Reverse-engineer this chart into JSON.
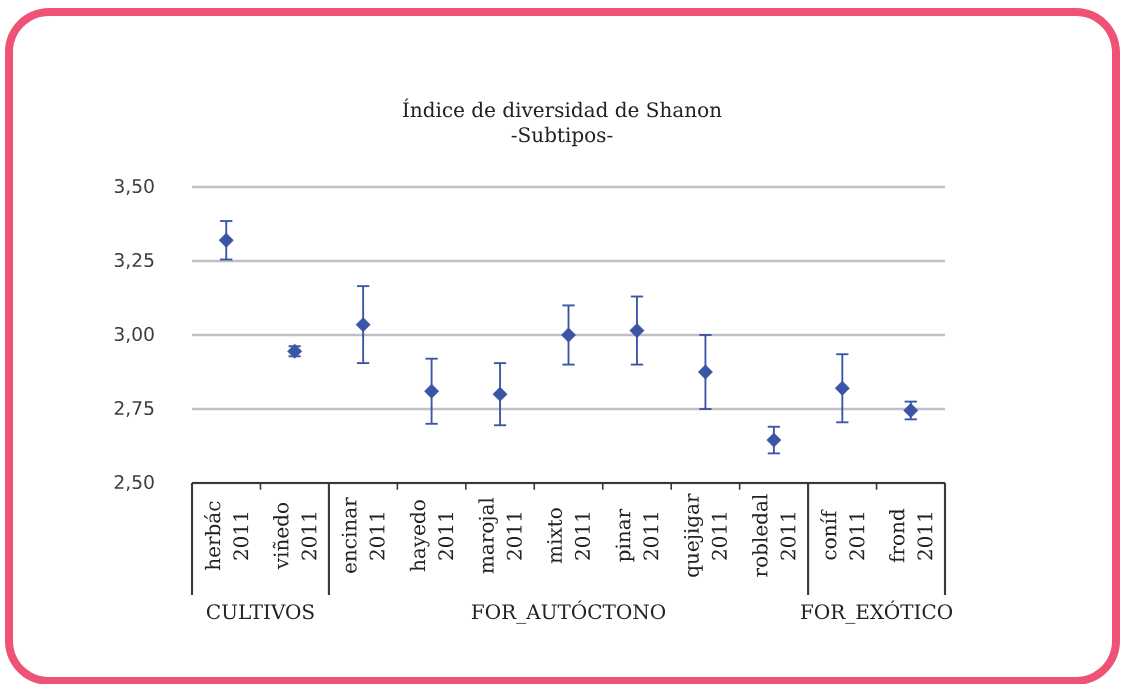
{
  "chart_data": {
    "type": "scatter",
    "title": "Índice de diversidad de Shanon",
    "subtitle": "-Subtipos-",
    "categories": [
      "herbác 2011",
      "viñedo 2011",
      "encinar 2011",
      "hayedo 2011",
      "marojal 2011",
      "mixto 2011",
      "pinar 2011",
      "quejigar 2011",
      "robledal 2011",
      "coníf 2011",
      "frond 2011"
    ],
    "series": [
      {
        "color": "#3b55a5",
        "values": [
          3.32,
          2.945,
          null,
          null,
          null,
          null,
          null,
          null,
          null,
          null,
          null
        ],
        "errors": [
          0.065,
          0.017,
          null,
          null,
          null,
          null,
          null,
          null,
          null,
          null,
          null
        ]
      },
      {
        "color": "#3b55a5",
        "values": [
          null,
          null,
          3.035,
          2.81,
          2.8,
          3.0,
          3.015,
          2.875,
          2.645,
          null,
          null
        ],
        "errors": [
          null,
          null,
          0.13,
          0.11,
          0.105,
          0.1,
          0.115,
          0.125,
          0.045,
          null,
          null
        ]
      },
      {
        "color": "#3b55a5",
        "values": [
          null,
          null,
          null,
          null,
          null,
          null,
          null,
          null,
          null,
          2.82,
          2.745
        ],
        "errors": [
          null,
          null,
          null,
          null,
          null,
          null,
          null,
          null,
          null,
          0.115,
          0.03
        ]
      }
    ],
    "annotations": [
      "CULTIVOS",
      "FOR_AUTÓCTONO",
      "FOR_EXÓTICO"
    ],
    "ylim": [
      2.5,
      3.5
    ],
    "yticks": [
      {
        "value": 2.5,
        "label": "2,50"
      },
      {
        "value": 2.75,
        "label": "2,75"
      },
      {
        "value": 3.0,
        "label": "3,00"
      },
      {
        "value": 3.25,
        "label": "3,25"
      },
      {
        "value": 3.5,
        "label": "3,50"
      }
    ],
    "grid": "y",
    "marker": "diamond"
  }
}
